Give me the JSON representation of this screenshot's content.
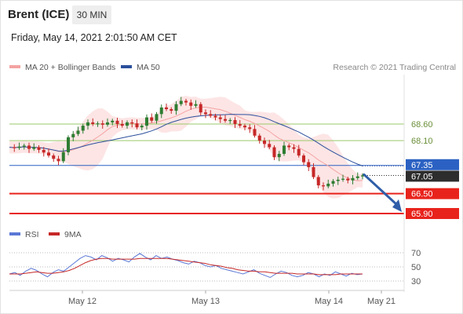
{
  "header": {
    "instrument": "Brent (ICE)",
    "timeframe": "30 MIN",
    "datetime": "Friday, May 14, 2021 2:01:50 AM CET",
    "credit": "Research © 2021 Trading Central"
  },
  "colors": {
    "bollinger_band": "#fde0e0",
    "ma20": "#f4a3a3",
    "ma50": "#2b4f9c",
    "resistance": "#9bc96b",
    "support": "#e8231c",
    "pivot": "#2b61c2",
    "current": "#2d2d2d",
    "arrow": "#2f5ea8",
    "bull_candle": "#2e7d32",
    "bear_candle": "#c62828",
    "rsi": "#5a78d6",
    "rsi_ma": "#c62828"
  },
  "chart_data": [
    {
      "type": "candlestick",
      "legend": [
        {
          "name": "MA 20 + Bollinger Bands",
          "color": "#f4a3a3"
        },
        {
          "name": "MA 50",
          "color": "#2b4f9c"
        }
      ],
      "x_ticks": [
        "May 12",
        "May 13",
        "May 14",
        "May 21"
      ],
      "levels": [
        {
          "label": "68.60",
          "value": 68.6,
          "kind": "resistance"
        },
        {
          "label": "68.10",
          "value": 68.1,
          "kind": "resistance"
        },
        {
          "label": "67.35",
          "value": 67.35,
          "kind": "pivot"
        },
        {
          "label": "67.05",
          "value": 67.05,
          "kind": "current"
        },
        {
          "label": "66.50",
          "value": 66.5,
          "kind": "support"
        },
        {
          "label": "65.90",
          "value": 65.9,
          "kind": "support"
        }
      ],
      "ylim": [
        65.8,
        69.5
      ],
      "close_path": [
        67.9,
        67.88,
        67.92,
        67.95,
        67.85,
        67.9,
        67.82,
        67.74,
        67.65,
        67.55,
        67.48,
        67.75,
        68.2,
        68.3,
        68.4,
        68.55,
        68.65,
        68.6,
        68.62,
        68.58,
        68.65,
        68.7,
        68.6,
        68.55,
        68.65,
        68.62,
        68.5,
        68.55,
        68.8,
        68.7,
        68.9,
        69.1,
        69.05,
        69.0,
        69.2,
        69.3,
        69.25,
        69.15,
        69.2,
        68.95,
        68.9,
        68.85,
        68.8,
        68.75,
        68.7,
        68.72,
        68.6,
        68.55,
        68.5,
        68.45,
        68.25,
        68.1,
        68.0,
        67.9,
        67.6,
        67.7,
        67.95,
        67.9,
        67.85,
        67.65,
        67.45,
        67.3,
        67.0,
        66.75,
        66.72,
        66.8,
        66.88,
        66.92,
        66.95,
        66.9,
        66.97,
        67.02,
        67.05
      ],
      "projection": {
        "from": 67.05,
        "to": 65.9,
        "direction": "down"
      }
    },
    {
      "type": "line",
      "legend": [
        {
          "name": "RSI",
          "color": "#5a78d6"
        },
        {
          "name": "9MA",
          "color": "#c62828"
        }
      ],
      "y_ticks": [
        70,
        50,
        30
      ],
      "ylim": [
        20,
        80
      ],
      "rsi": [
        40,
        42,
        38,
        44,
        48,
        45,
        40,
        36,
        42,
        46,
        44,
        50,
        56,
        62,
        66,
        64,
        60,
        66,
        63,
        58,
        62,
        60,
        57,
        64,
        69,
        64,
        60,
        66,
        62,
        64,
        61,
        59,
        56,
        54,
        58,
        56,
        52,
        50,
        52,
        48,
        46,
        44,
        42,
        40,
        43,
        46,
        41,
        38,
        35,
        40,
        44,
        42,
        38,
        36,
        38,
        42,
        40,
        36,
        40,
        38,
        43,
        40,
        37,
        41,
        39,
        40
      ],
      "rsi_ma": [
        40,
        40,
        40,
        41,
        42,
        43,
        42,
        41,
        41,
        42,
        43,
        45,
        48,
        52,
        56,
        59,
        61,
        62,
        62,
        61,
        61,
        61,
        61,
        61,
        62,
        62,
        62,
        62,
        62,
        62,
        61,
        60,
        59,
        58,
        57,
        56,
        55,
        53,
        52,
        51,
        49,
        48,
        46,
        45,
        44,
        44,
        43,
        43,
        42,
        41,
        41,
        41,
        41,
        40,
        40,
        40,
        40,
        39,
        39,
        39,
        39,
        40,
        40,
        40,
        40,
        40
      ]
    }
  ]
}
